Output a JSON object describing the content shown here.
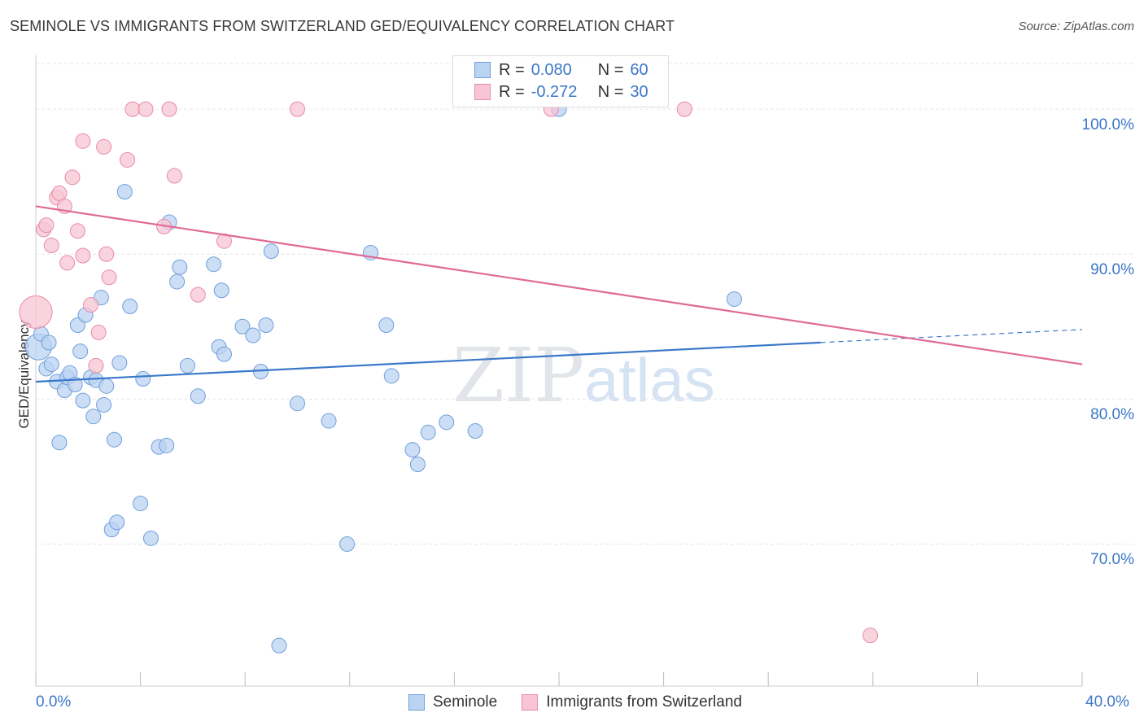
{
  "title": "SEMINOLE VS IMMIGRANTS FROM SWITZERLAND GED/EQUIVALENCY CORRELATION CHART",
  "source": "Source: ZipAtlas.com",
  "watermark": {
    "zip": "ZIP",
    "atlas": "atlas"
  },
  "legend": {
    "rows": [
      {
        "r_label": "R =",
        "r_value": "0.080",
        "n_label": "N =",
        "n_value": "60"
      },
      {
        "r_label": "R =",
        "r_value": "-0.272",
        "n_label": "N =",
        "n_value": "30"
      }
    ]
  },
  "bottom_legend": {
    "seminole": "Seminole",
    "swiss": "Immigrants from Switzerland"
  },
  "colors": {
    "seminole_fill": "#b9d3f1",
    "seminole_stroke": "#6f9fda",
    "seminole_line": "#3a78c9",
    "swiss_fill": "#f7c5d4",
    "swiss_stroke": "#e88aa8",
    "swiss_line": "#e06a95",
    "tick_label": "#3c78c8",
    "grid": "#e6e6e6"
  },
  "chart_data": {
    "type": "scatter",
    "title": "SEMINOLE VS IMMIGRANTS FROM SWITZERLAND GED/EQUIVALENCY CORRELATION CHART",
    "xlabel": "",
    "ylabel": "GED/Equivalency",
    "xlim": [
      0,
      40
    ],
    "ylim": [
      60.2,
      103.6
    ],
    "x_tick_labels": [
      {
        "value": 0,
        "label": "0.0%"
      },
      {
        "value": 40,
        "label": "40.0%"
      }
    ],
    "y_ticks": [
      {
        "value": 70,
        "label": "70.0%"
      },
      {
        "value": 80,
        "label": "80.0%"
      },
      {
        "value": 90,
        "label": "90.0%"
      },
      {
        "value": 100,
        "label": "100.0%"
      }
    ],
    "grid": true,
    "legend_position": "top-center",
    "series": [
      {
        "name": "Seminole",
        "r": 0.08,
        "n": 60,
        "trend": {
          "x0": 0,
          "y0": 81.2,
          "x1": 30,
          "y1": 83.9,
          "dash_x1": 40,
          "dash_y1": 84.8
        },
        "points": [
          [
            0.1,
            83.6,
            16
          ],
          [
            0.2,
            84.5,
            9
          ],
          [
            0.4,
            82.1,
            9
          ],
          [
            0.5,
            83.9,
            9
          ],
          [
            0.6,
            82.4,
            9
          ],
          [
            0.8,
            81.2,
            9
          ],
          [
            0.9,
            77.0,
            9
          ],
          [
            1.1,
            80.6,
            9
          ],
          [
            1.2,
            81.5,
            9
          ],
          [
            1.3,
            81.8,
            9
          ],
          [
            1.5,
            81.0,
            9
          ],
          [
            1.6,
            85.1,
            9
          ],
          [
            1.7,
            83.3,
            9
          ],
          [
            1.8,
            79.9,
            9
          ],
          [
            1.9,
            85.8,
            9
          ],
          [
            2.1,
            81.5,
            9
          ],
          [
            2.2,
            78.8,
            9
          ],
          [
            2.3,
            81.3,
            9
          ],
          [
            2.5,
            87.0,
            9
          ],
          [
            2.6,
            79.6,
            9
          ],
          [
            2.7,
            80.9,
            9
          ],
          [
            2.9,
            71.0,
            9
          ],
          [
            3.0,
            77.2,
            9
          ],
          [
            3.1,
            71.5,
            9
          ],
          [
            3.2,
            82.5,
            9
          ],
          [
            3.4,
            94.3,
            9
          ],
          [
            3.6,
            86.4,
            9
          ],
          [
            4.0,
            72.8,
            9
          ],
          [
            4.1,
            81.4,
            9
          ],
          [
            4.4,
            70.4,
            9
          ],
          [
            4.7,
            76.7,
            9
          ],
          [
            5.0,
            76.8,
            9
          ],
          [
            5.1,
            92.2,
            9
          ],
          [
            5.4,
            88.1,
            9
          ],
          [
            5.5,
            89.1,
            9
          ],
          [
            5.8,
            82.3,
            9
          ],
          [
            6.2,
            80.2,
            9
          ],
          [
            6.8,
            89.3,
            9
          ],
          [
            7.0,
            83.6,
            9
          ],
          [
            7.1,
            87.5,
            9
          ],
          [
            7.2,
            83.1,
            9
          ],
          [
            7.9,
            85.0,
            9
          ],
          [
            8.3,
            84.4,
            9
          ],
          [
            8.6,
            81.9,
            9
          ],
          [
            8.8,
            85.1,
            9
          ],
          [
            9.0,
            90.2,
            9
          ],
          [
            9.3,
            63.0,
            9
          ],
          [
            10.0,
            79.7,
            9
          ],
          [
            11.2,
            78.5,
            9
          ],
          [
            11.9,
            70.0,
            9
          ],
          [
            12.8,
            90.1,
            9
          ],
          [
            13.4,
            85.1,
            9
          ],
          [
            13.6,
            81.6,
            9
          ],
          [
            14.4,
            76.5,
            9
          ],
          [
            14.6,
            75.5,
            9
          ],
          [
            15.0,
            77.7,
            9
          ],
          [
            15.7,
            78.4,
            9
          ],
          [
            16.8,
            77.8,
            9
          ],
          [
            20.0,
            100.0,
            9
          ],
          [
            26.7,
            86.9,
            9
          ]
        ]
      },
      {
        "name": "Immigrants from Switzerland",
        "r": -0.272,
        "n": 30,
        "trend": {
          "x0": 0,
          "y0": 93.3,
          "x1": 40,
          "y1": 82.4
        },
        "points": [
          [
            0.0,
            86.0,
            20
          ],
          [
            0.3,
            91.7,
            9
          ],
          [
            0.4,
            92.0,
            9
          ],
          [
            0.6,
            90.6,
            9
          ],
          [
            0.8,
            93.9,
            9
          ],
          [
            0.9,
            94.2,
            9
          ],
          [
            1.1,
            93.3,
            9
          ],
          [
            1.2,
            89.4,
            9
          ],
          [
            1.4,
            95.3,
            9
          ],
          [
            1.6,
            91.6,
            9
          ],
          [
            1.8,
            89.9,
            9
          ],
          [
            1.8,
            97.8,
            9
          ],
          [
            2.1,
            86.5,
            9
          ],
          [
            2.3,
            82.3,
            9
          ],
          [
            2.4,
            84.6,
            9
          ],
          [
            2.6,
            97.4,
            9
          ],
          [
            2.7,
            90.0,
            9
          ],
          [
            2.8,
            88.4,
            9
          ],
          [
            3.5,
            96.5,
            9
          ],
          [
            3.7,
            100.0,
            9
          ],
          [
            4.2,
            100.0,
            9
          ],
          [
            4.9,
            91.9,
            9
          ],
          [
            5.1,
            100.0,
            9
          ],
          [
            5.3,
            95.4,
            9
          ],
          [
            6.2,
            87.2,
            9
          ],
          [
            7.2,
            90.9,
            9
          ],
          [
            10.0,
            100.0,
            9
          ],
          [
            19.7,
            100.0,
            9
          ],
          [
            24.8,
            100.0,
            9
          ],
          [
            31.9,
            63.7,
            9
          ]
        ]
      }
    ]
  }
}
